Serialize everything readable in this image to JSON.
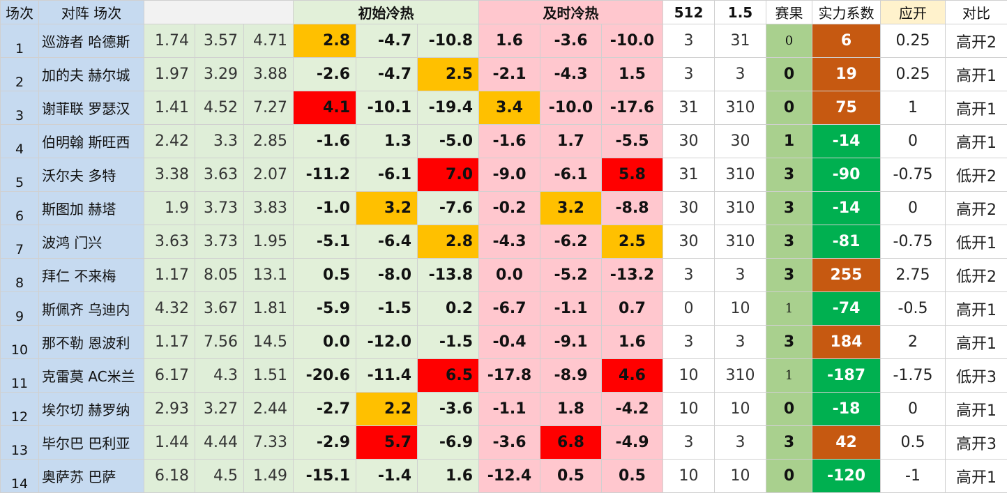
{
  "header": {
    "index": "场次",
    "matchup": "对阵 场次",
    "odds": "",
    "initial": "初始冷热",
    "timely": "及时冷热",
    "c512": "512",
    "c15": "1.5",
    "result": "赛果",
    "strength": "实力系数",
    "should_open": "应开",
    "compare": "对比"
  },
  "rows": [
    {
      "idx": "1",
      "team": "巡游者 哈德斯",
      "o1": "1.74",
      "o2": "3.57",
      "o3": "4.71",
      "i1": "2.8",
      "i2": "-4.7",
      "i3": "-10.8",
      "t1": "1.6",
      "t2": "-3.6",
      "t3": "-10.0",
      "a": "3",
      "b": "31",
      "result": "0",
      "strength": "6",
      "open": "0.25",
      "cmp": "高开2"
    },
    {
      "idx": "2",
      "team": "加的夫 赫尔城",
      "o1": "1.97",
      "o2": "3.29",
      "o3": "3.88",
      "i1": "-2.6",
      "i2": "-4.7",
      "i3": "2.5",
      "t1": "-2.1",
      "t2": "-4.3",
      "t3": "1.5",
      "a": "3",
      "b": "3",
      "result": "0",
      "strength": "19",
      "open": "0.25",
      "cmp": "高开1"
    },
    {
      "idx": "3",
      "team": "谢菲联 罗瑟汉",
      "o1": "1.41",
      "o2": "4.52",
      "o3": "7.27",
      "i1": "4.1",
      "i2": "-10.1",
      "i3": "-19.4",
      "t1": "3.4",
      "t2": "-10.0",
      "t3": "-17.6",
      "a": "31",
      "b": "310",
      "result": "0",
      "strength": "75",
      "open": "1",
      "cmp": "高开1"
    },
    {
      "idx": "4",
      "team": "伯明翰 斯旺西",
      "o1": "2.42",
      "o2": "3.3",
      "o3": "2.85",
      "i1": "-1.6",
      "i2": "1.3",
      "i3": "-5.0",
      "t1": "-1.6",
      "t2": "1.7",
      "t3": "-5.5",
      "a": "30",
      "b": "30",
      "result": "1",
      "strength": "-14",
      "open": "0",
      "cmp": "高开1"
    },
    {
      "idx": "5",
      "team": "沃尔夫 多特",
      "o1": "3.38",
      "o2": "3.63",
      "o3": "2.07",
      "i1": "-11.2",
      "i2": "-6.1",
      "i3": "7.0",
      "t1": "-9.0",
      "t2": "-6.1",
      "t3": "5.8",
      "a": "31",
      "b": "310",
      "result": "3",
      "strength": "-90",
      "open": "-0.75",
      "cmp": "低开2"
    },
    {
      "idx": "6",
      "team": "斯图加 赫塔",
      "o1": "1.9",
      "o2": "3.73",
      "o3": "3.83",
      "i1": "-1.0",
      "i2": "3.2",
      "i3": "-7.6",
      "t1": "-0.2",
      "t2": "3.2",
      "t3": "-8.8",
      "a": "30",
      "b": "310",
      "result": "3",
      "strength": "-14",
      "open": "0",
      "cmp": "高开2"
    },
    {
      "idx": "7",
      "team": "波鸿  门兴",
      "o1": "3.63",
      "o2": "3.73",
      "o3": "1.95",
      "i1": "-5.1",
      "i2": "-6.4",
      "i3": "2.8",
      "t1": "-4.3",
      "t2": "-6.2",
      "t3": "2.5",
      "a": "30",
      "b": "310",
      "result": "3",
      "strength": "-81",
      "open": "-0.75",
      "cmp": "低开1"
    },
    {
      "idx": "8",
      "team": "拜仁  不来梅",
      "o1": "1.17",
      "o2": "8.05",
      "o3": "13.1",
      "i1": "0.5",
      "i2": "-8.0",
      "i3": "-13.8",
      "t1": "0.0",
      "t2": "-5.2",
      "t3": "-13.2",
      "a": "3",
      "b": "3",
      "result": "3",
      "strength": "255",
      "open": "2.75",
      "cmp": "低开2"
    },
    {
      "idx": "9",
      "team": "斯佩齐 乌迪内",
      "o1": "4.32",
      "o2": "3.67",
      "o3": "1.81",
      "i1": "-5.9",
      "i2": "-1.5",
      "i3": "0.2",
      "t1": "-6.7",
      "t2": "-1.1",
      "t3": "0.7",
      "a": "0",
      "b": "10",
      "result": "1",
      "strength": "-74",
      "open": "-0.5",
      "cmp": "高开1"
    },
    {
      "idx": "10",
      "team": "那不勒 恩波利",
      "o1": "1.17",
      "o2": "7.56",
      "o3": "14.5",
      "i1": "0.0",
      "i2": "-12.0",
      "i3": "-1.5",
      "t1": "-0.4",
      "t2": "-9.1",
      "t3": "1.6",
      "a": "3",
      "b": "3",
      "result": "3",
      "strength": "184",
      "open": "2",
      "cmp": "高开1"
    },
    {
      "idx": "11",
      "team": "克雷莫 AC米兰",
      "o1": "6.17",
      "o2": "4.3",
      "o3": "1.51",
      "i1": "-20.6",
      "i2": "-11.4",
      "i3": "6.5",
      "t1": "-17.8",
      "t2": "-8.9",
      "t3": "4.6",
      "a": "10",
      "b": "310",
      "result": "1",
      "strength": "-187",
      "open": "-1.75",
      "cmp": "低开3"
    },
    {
      "idx": "12",
      "team": "埃尔切 赫罗纳",
      "o1": "2.93",
      "o2": "3.27",
      "o3": "2.44",
      "i1": "-2.7",
      "i2": "2.2",
      "i3": "-3.6",
      "t1": "-1.1",
      "t2": "1.8",
      "t3": "-4.2",
      "a": "10",
      "b": "10",
      "result": "0",
      "strength": "-18",
      "open": "0",
      "cmp": "高开1"
    },
    {
      "idx": "13",
      "team": "毕尔巴 巴利亚",
      "o1": "1.44",
      "o2": "4.44",
      "o3": "7.33",
      "i1": "-2.9",
      "i2": "5.7",
      "i3": "-6.9",
      "t1": "-3.6",
      "t2": "6.8",
      "t3": "-4.9",
      "a": "3",
      "b": "3",
      "result": "3",
      "strength": "42",
      "open": "0.5",
      "cmp": "高开3"
    },
    {
      "idx": "14",
      "team": "奥萨苏 巴萨",
      "o1": "6.18",
      "o2": "4.5",
      "o3": "1.49",
      "i1": "-15.1",
      "i2": "-1.4",
      "i3": "1.6",
      "t1": "-12.4",
      "t2": "0.5",
      "t3": "0.5",
      "a": "10",
      "b": "10",
      "result": "0",
      "strength": "-120",
      "open": "-1",
      "cmp": "高开1"
    }
  ],
  "highlights": {
    "orange": [
      "0.i1",
      "1.i3",
      "2.t1",
      "5.i2",
      "5.t2",
      "6.i3",
      "6.t3",
      "11.i2"
    ],
    "red": [
      "2.i1",
      "4.i3",
      "4.t3",
      "10.i3",
      "10.t3",
      "12.i2",
      "12.t2"
    ]
  },
  "small_result_rows": [
    0,
    8,
    10
  ],
  "colors": {
    "team_bg": "#c6daf0",
    "init_bg": "#e2f0d9",
    "timely_bg": "#ffc7ce",
    "orange": "#ffc000",
    "red": "#ff0000",
    "result_bg": "#a9d08e",
    "strength_pos": "#c65911",
    "strength_neg": "#00b050",
    "open_header": "#fff2cc"
  }
}
